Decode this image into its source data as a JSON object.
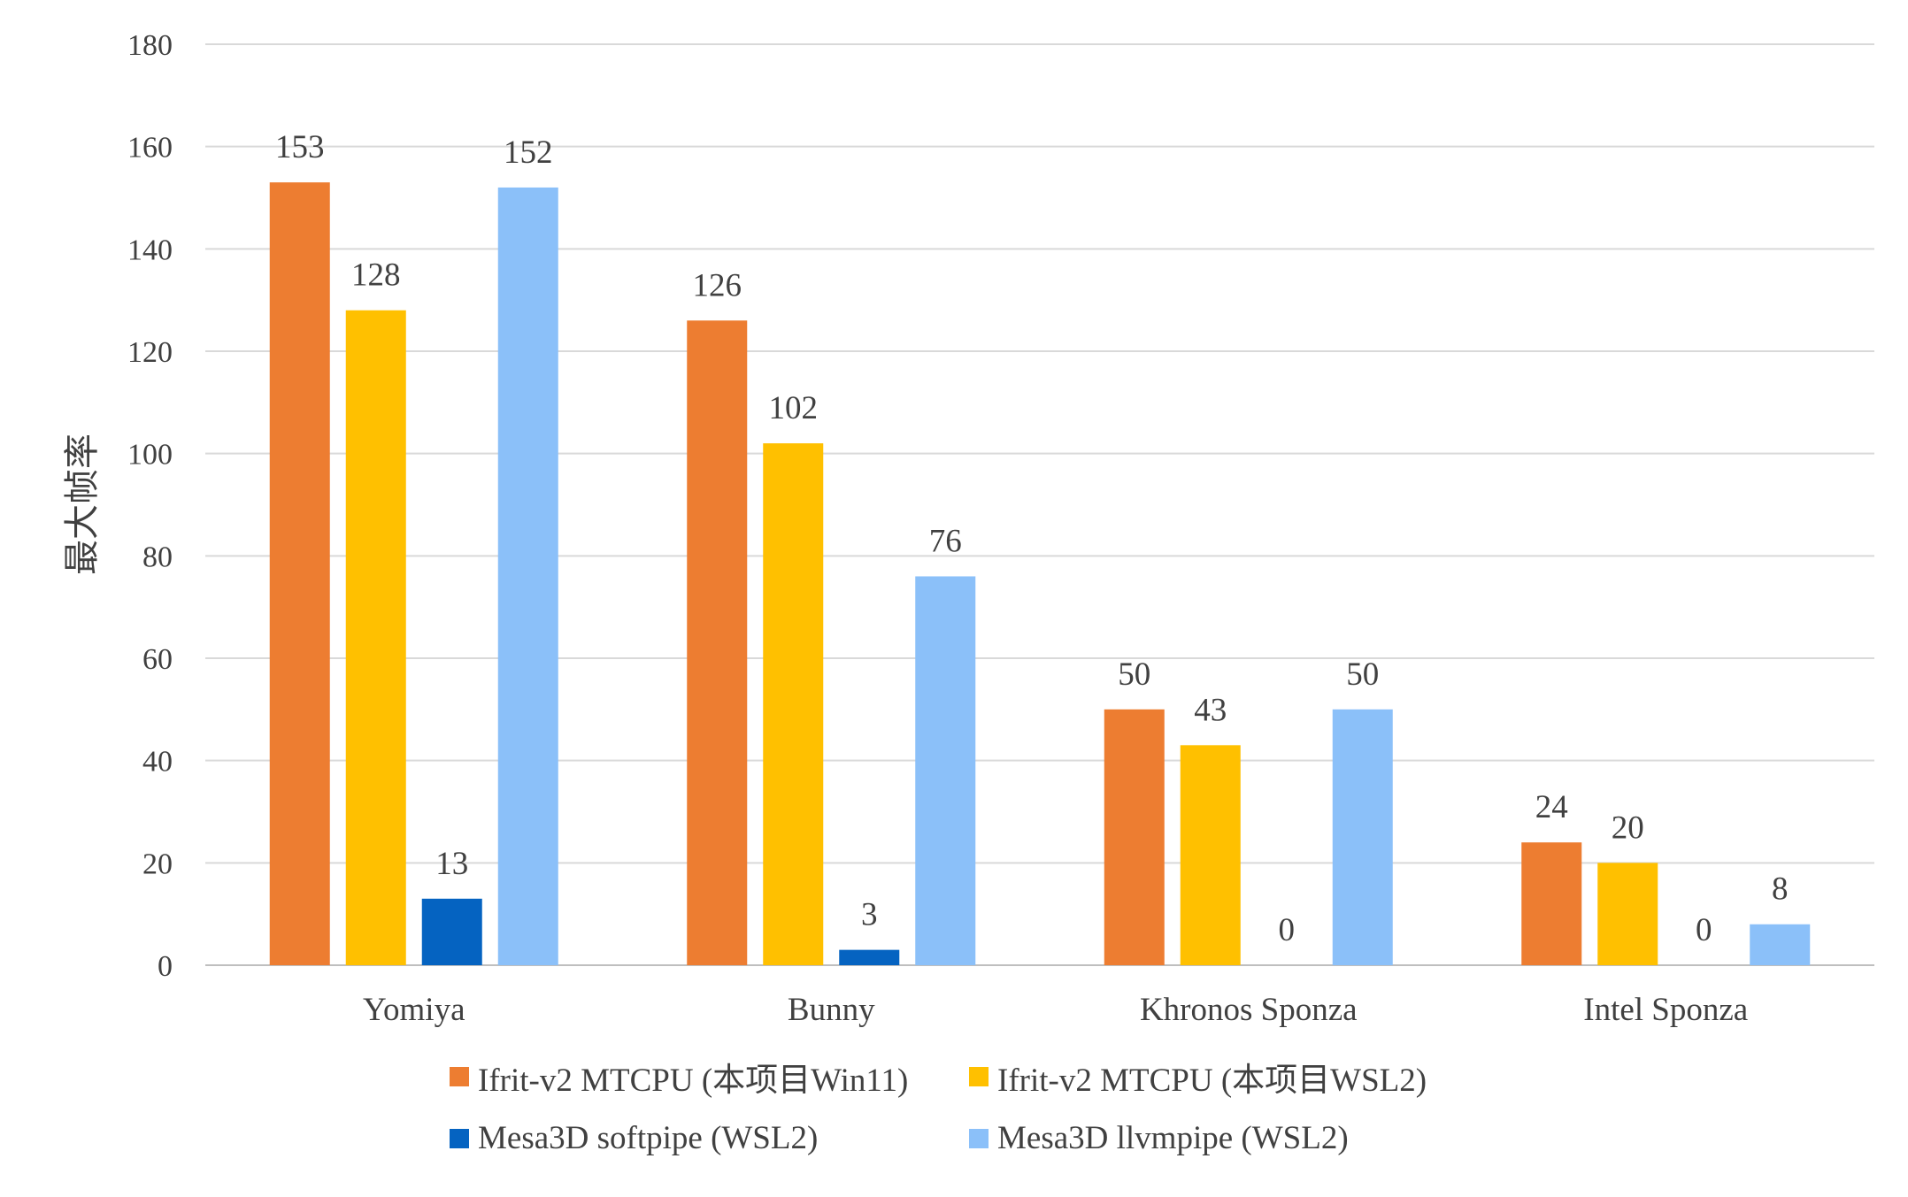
{
  "chart_data": {
    "type": "bar",
    "categories": [
      "Yomiya",
      "Bunny",
      "Khronos Sponza",
      "Intel Sponza"
    ],
    "series": [
      {
        "name": "Ifrit-v2 MTCPU (本项目Win11)",
        "color": "#ED7D31",
        "values": [
          153,
          126,
          50,
          24
        ]
      },
      {
        "name": "Ifrit-v2 MTCPU (本项目WSL2)",
        "color": "#FFC000",
        "values": [
          128,
          102,
          43,
          20
        ]
      },
      {
        "name": "Mesa3D softpipe (WSL2)",
        "color": "#0563C1",
        "values": [
          13,
          3,
          0,
          0
        ]
      },
      {
        "name": "Mesa3D llvmpipe (WSL2)",
        "color": "#8BC0F9",
        "values": [
          152,
          76,
          50,
          8
        ]
      }
    ],
    "title": "",
    "xlabel": "",
    "ylabel": "最大帧率",
    "ylim": [
      0,
      180
    ],
    "yticks": [
      0,
      20,
      40,
      60,
      80,
      100,
      120,
      140,
      160,
      180
    ],
    "grid": true,
    "data_labels": true,
    "legend_position": "bottom"
  }
}
